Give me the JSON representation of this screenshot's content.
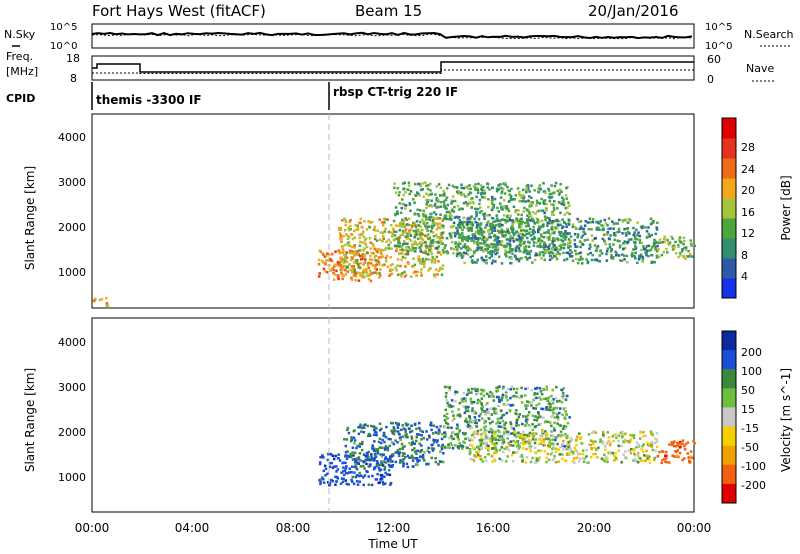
{
  "header": {
    "station": "Fort Hays West (fitACF)",
    "beam": "Beam 15",
    "date": "20/Jan/2016"
  },
  "strip": {
    "nsky_label": "N.Sky",
    "nsearch_label": "N.Search",
    "freq_label_1": "Freq.",
    "freq_label_2": "[MHz]",
    "nave_label": "Nave",
    "cpid_label": "CPID",
    "left_ticks": {
      "top": "10^5",
      "bottom": "10^0",
      "freq_top": "18",
      "freq_bottom": "8"
    },
    "right_ticks": {
      "top": "10^5",
      "bottom": "10^0",
      "nave_top": "60",
      "nave_bottom": "0"
    },
    "cpid_entries": [
      {
        "label": "themis -3300 IF",
        "start_hour": 0
      },
      {
        "label": "rbsp CT-trig 220 IF",
        "start_hour": 9.5
      }
    ]
  },
  "chart_data": [
    {
      "type": "heatmap",
      "panel": "power",
      "ylabel": "Slant Range [km]",
      "y_ticks": [
        "1000",
        "2000",
        "3000",
        "4000"
      ],
      "ylim": [
        180,
        4500
      ],
      "xlim": [
        0,
        24
      ],
      "colorbar": {
        "label": "Power [dB]",
        "ticks": [
          "4",
          "8",
          "12",
          "16",
          "20",
          "24",
          "28"
        ],
        "colors": [
          "#1433e6",
          "#2f5aa8",
          "#2f8f6f",
          "#4ea53a",
          "#a6c43a",
          "#f2a81a",
          "#f06a18",
          "#e5331e",
          "#e00000"
        ]
      },
      "regions": [
        {
          "x": [
            9.0,
            11.5
          ],
          "y": [
            800,
            1500
          ],
          "value": 22
        },
        {
          "x": [
            9.8,
            14.0
          ],
          "y": [
            900,
            2200
          ],
          "value": 18
        },
        {
          "x": [
            12.0,
            19.0
          ],
          "y": [
            1400,
            3000
          ],
          "value": 12
        },
        {
          "x": [
            14.5,
            22.5
          ],
          "y": [
            1200,
            2200
          ],
          "value": 10
        },
        {
          "x": [
            22.5,
            24.0
          ],
          "y": [
            1300,
            1800
          ],
          "value": 14
        },
        {
          "x": [
            0.0,
            0.6
          ],
          "y": [
            250,
            450
          ],
          "value": 20
        }
      ]
    },
    {
      "type": "heatmap",
      "panel": "velocity",
      "ylabel": "Slant Range [km]",
      "y_ticks": [
        "1000",
        "2000",
        "3000",
        "4000"
      ],
      "ylim": [
        180,
        4500
      ],
      "xlim": [
        0,
        24
      ],
      "x_ticks": [
        "00:00",
        "04:00",
        "08:00",
        "12:00",
        "16:00",
        "20:00",
        "00:00"
      ],
      "xlabel": "Time UT",
      "colorbar": {
        "label": "Velocity [m s^-1]",
        "ticks": [
          "200",
          "100",
          "50",
          "15",
          "-15",
          "-50",
          "-100",
          "-200"
        ],
        "colors": [
          "#0a2a9e",
          "#1b4fd8",
          "#3a8a3a",
          "#6cbf3a",
          "#c8c8c8",
          "#f5d000",
          "#f0a000",
          "#f06010",
          "#e00000"
        ]
      },
      "regions": [
        {
          "x": [
            9.0,
            12.0
          ],
          "y": [
            800,
            1500
          ],
          "value": 150
        },
        {
          "x": [
            10.0,
            14.0
          ],
          "y": [
            1200,
            2200
          ],
          "value": 100
        },
        {
          "x": [
            14.0,
            19.0
          ],
          "y": [
            1600,
            3000
          ],
          "value": 60
        },
        {
          "x": [
            15.0,
            22.5
          ],
          "y": [
            1300,
            2000
          ],
          "value": 0
        },
        {
          "x": [
            22.5,
            24.0
          ],
          "y": [
            1300,
            1800
          ],
          "value": -150
        }
      ]
    }
  ]
}
